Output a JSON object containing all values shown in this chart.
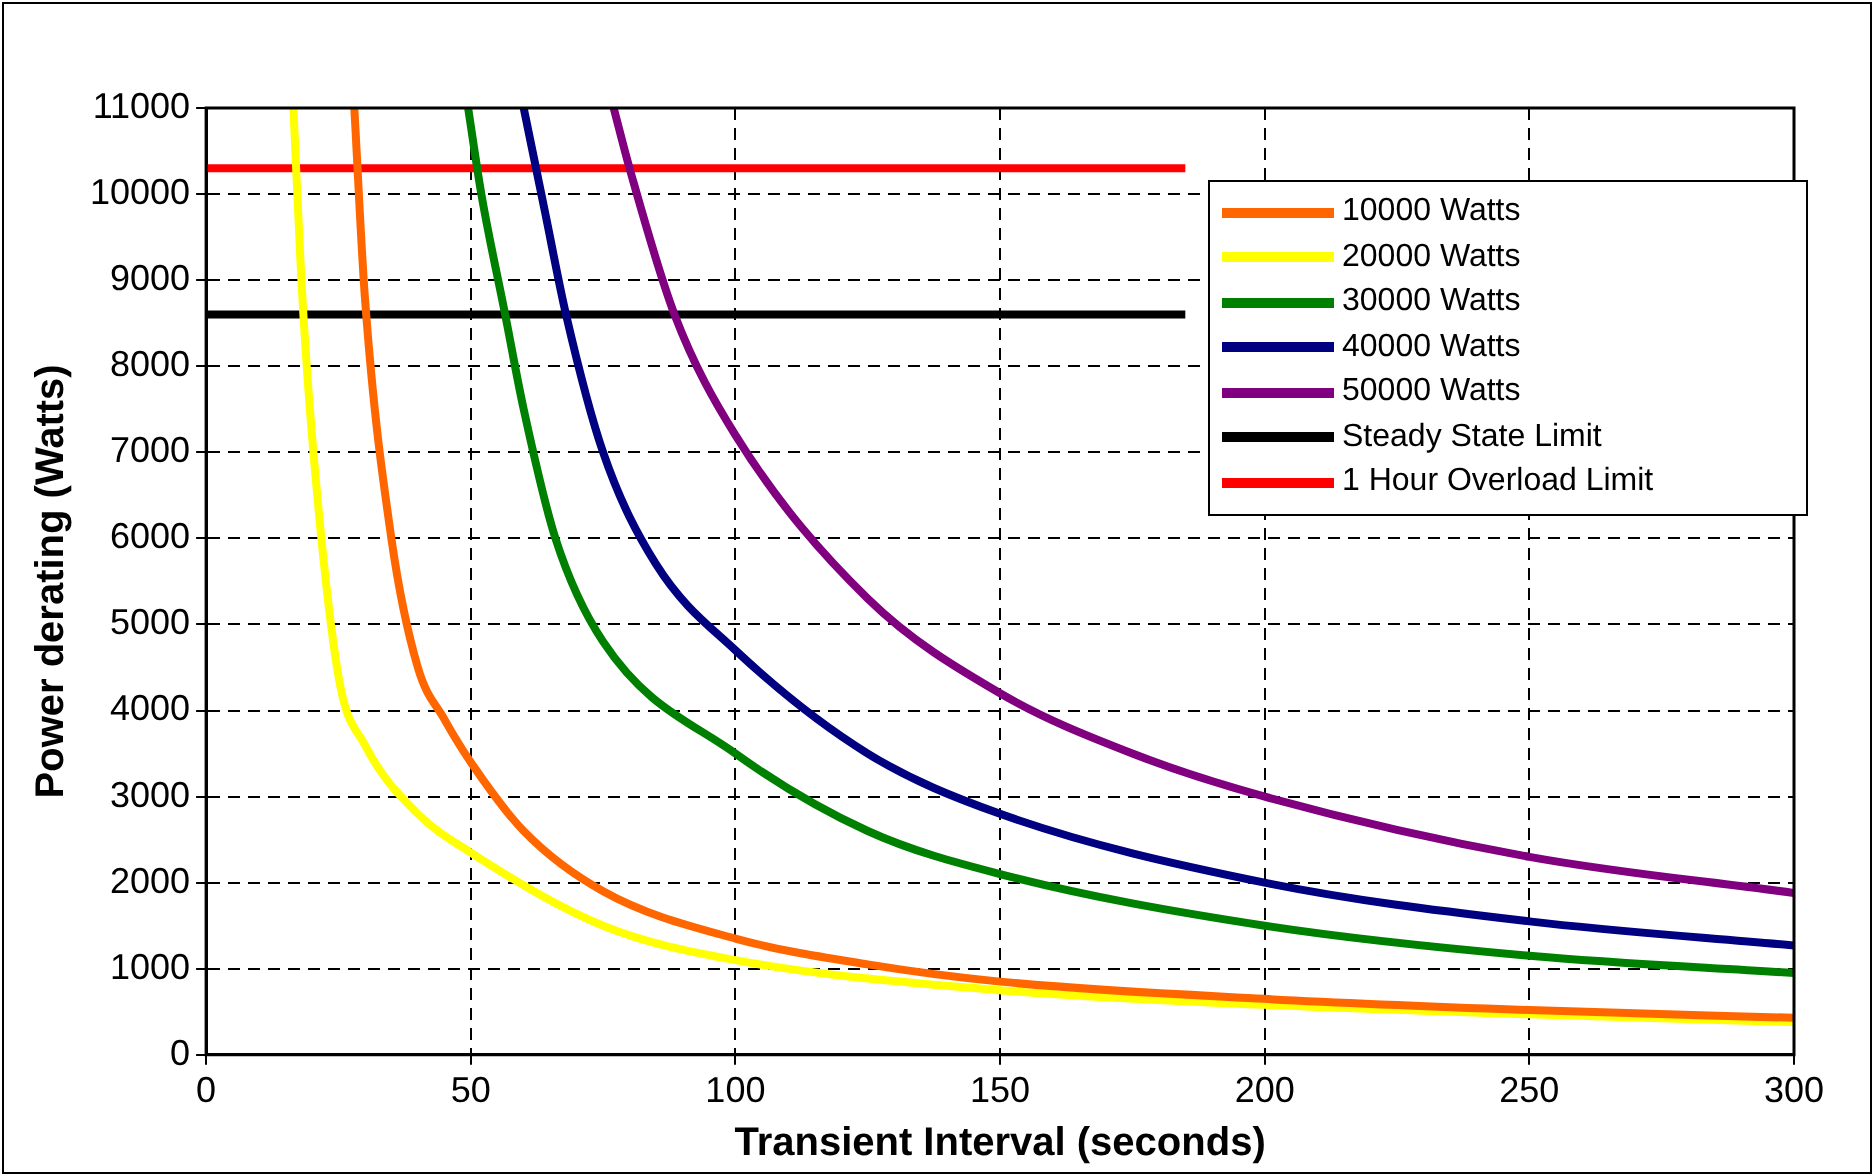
{
  "chart_data": {
    "type": "line",
    "xlabel": "Transient Interval (seconds)",
    "ylabel": "Power derating (Watts)",
    "xlim": [
      0,
      300
    ],
    "xticks": [
      0,
      50,
      100,
      150,
      200,
      250,
      300
    ],
    "ylim": [
      0,
      11000
    ],
    "yticks": [
      0,
      1000,
      2000,
      3000,
      4000,
      5000,
      6000,
      7000,
      8000,
      9000,
      10000,
      11000
    ],
    "grid": true,
    "legend": "top right",
    "marker": "none",
    "line_style": "solid",
    "series": [
      {
        "name": "10000 Watts",
        "color": "#ff6600",
        "x": [
          28,
          30,
          35,
          40,
          45,
          50,
          60,
          75,
          100,
          125,
          150,
          200,
          250,
          300
        ],
        "values": [
          11000,
          8800,
          6000,
          4500,
          3900,
          3400,
          2600,
          1900,
          1350,
          1050,
          850,
          650,
          520,
          430
        ]
      },
      {
        "name": "20000 Watts",
        "color": "#ffff00",
        "x": [
          16.5,
          18,
          20,
          25,
          30,
          40,
          50,
          75,
          100,
          150,
          200,
          250,
          300
        ],
        "values": [
          11000,
          9000,
          7200,
          4400,
          3600,
          2800,
          2350,
          1500,
          1100,
          750,
          580,
          470,
          380
        ]
      },
      {
        "name": "30000 Watts",
        "color": "#008000",
        "x": [
          49.5,
          52,
          56.5,
          60,
          66,
          75,
          100,
          125,
          150,
          200,
          250,
          300
        ],
        "values": [
          11000,
          10000,
          8600,
          7500,
          6000,
          4800,
          3500,
          2600,
          2100,
          1500,
          1150,
          950
        ]
      },
      {
        "name": "40000 Watts",
        "color": "#000080",
        "x": [
          60,
          64,
          68,
          75,
          85,
          100,
          125,
          150,
          200,
          250,
          300
        ],
        "values": [
          11000,
          9800,
          8600,
          7000,
          5700,
          4700,
          3500,
          2800,
          2000,
          1550,
          1270
        ]
      },
      {
        "name": "50000 Watts",
        "color": "#800080",
        "x": [
          77,
          80,
          88.5,
          100,
          125,
          150,
          175,
          200,
          250,
          300
        ],
        "values": [
          11000,
          10300,
          8600,
          7200,
          5300,
          4200,
          3500,
          3000,
          2300,
          1880
        ]
      },
      {
        "name": "Steady State Limit",
        "color": "#000000",
        "x": [
          0,
          185
        ],
        "values": [
          8600,
          8600
        ]
      },
      {
        "name": "1 Hour Overload Limit",
        "color": "#ff0000",
        "x": [
          0,
          185
        ],
        "values": [
          10300,
          10300
        ]
      }
    ]
  }
}
